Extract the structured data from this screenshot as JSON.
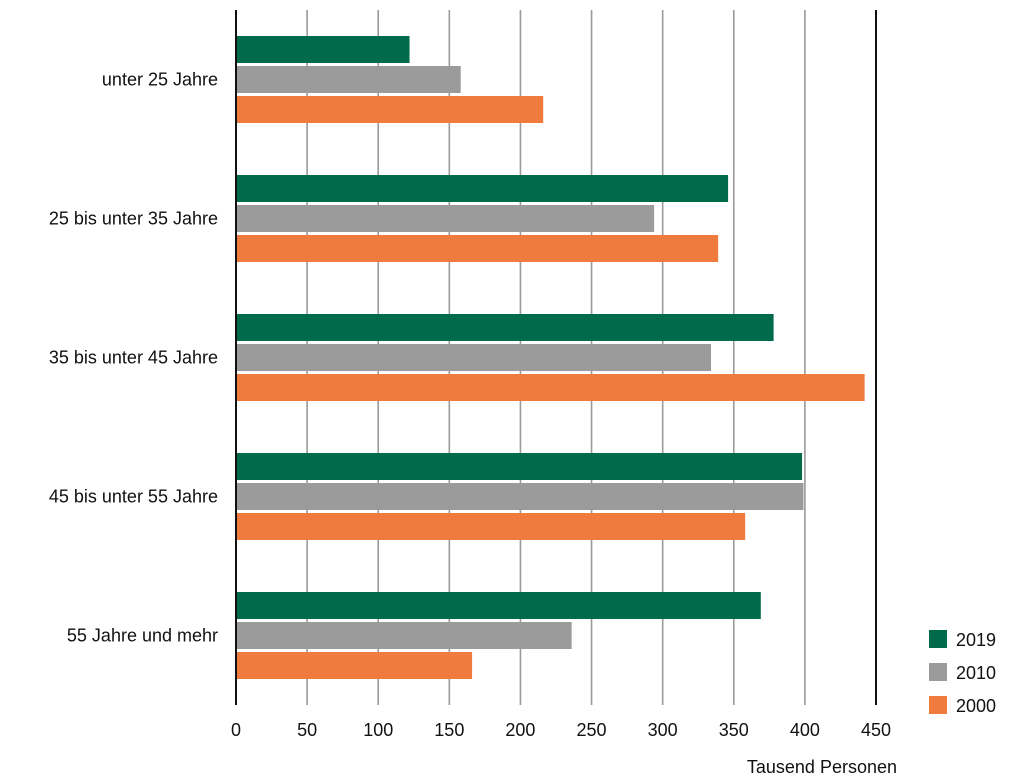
{
  "chart_data": {
    "type": "bar",
    "orientation": "horizontal",
    "title": "",
    "xlabel": "Tausend Personen",
    "ylabel": "",
    "xlim": [
      0,
      450
    ],
    "xticks": [
      0,
      50,
      100,
      150,
      200,
      250,
      300,
      350,
      400,
      450
    ],
    "grid": true,
    "legend_position": "bottom-right",
    "categories": [
      "unter 25 Jahre",
      "25 bis unter 35 Jahre",
      "35 bis unter 45 Jahre",
      "45 bis unter 55 Jahre",
      "55 Jahre und mehr"
    ],
    "series": [
      {
        "name": "2019",
        "color": "#006b4a",
        "values": [
          122,
          346,
          378,
          398,
          369
        ]
      },
      {
        "name": "2010",
        "color": "#9b9b9b",
        "values": [
          158,
          294,
          334,
          399,
          236
        ]
      },
      {
        "name": "2000",
        "color": "#ef7b3e",
        "values": [
          216,
          339,
          442,
          358,
          166
        ]
      }
    ]
  }
}
